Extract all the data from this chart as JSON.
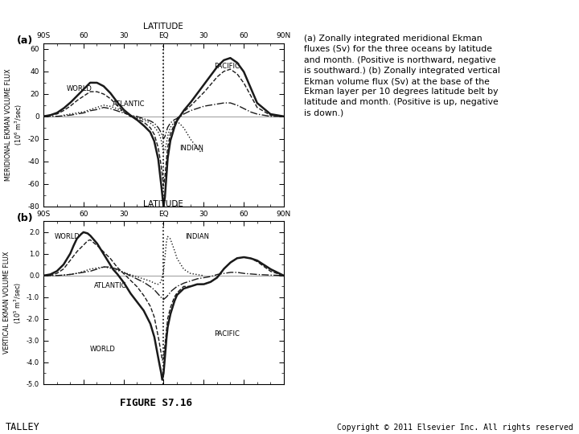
{
  "fig_width": 7.2,
  "fig_height": 5.4,
  "bg_color": "#ffffff",
  "panel_a_ylabel": "MERIDIONAL EKMAN VOLUME FLUX (10^6 m^3/sec)",
  "panel_b_ylabel": "VERTICAL EKMAN VOLUME FLUX (10^5 m^3/sec)",
  "xlabel_top": "LATITUDE",
  "panel_a_ylim": [
    -80,
    65
  ],
  "panel_b_ylim": [
    -5.0,
    2.5
  ],
  "xlim": [
    -90,
    90
  ],
  "xticks": [
    -90,
    -60,
    -30,
    0,
    30,
    60,
    90
  ],
  "xtick_labels": [
    "90S",
    "60",
    "30",
    "EQ",
    "30",
    "60",
    "90N"
  ],
  "figure_label": "FIGURE S7.16",
  "bottom_left_label": "TALLEY",
  "bottom_right_label": "Copyright © 2011 Elsevier Inc. All rights reserved",
  "panel_a_label": "(a)",
  "panel_b_label": "(b)",
  "caption_text": "(a) Zonally integrated meridional Ekman\nfluxes (Sv) for the three oceans by latitude\nand month. (Positive is northward, negative\nis southward.) (b) Zonally integrated vertical\nEkman volume flux (Sv) at the base of the\nEkman layer per 10 degrees latitude belt by\nlatitude and month. (Positive is up, negative\nis down.)"
}
